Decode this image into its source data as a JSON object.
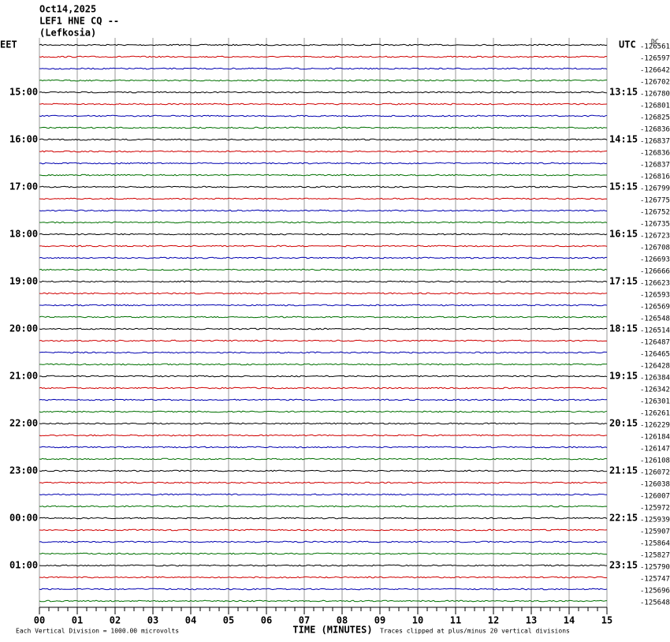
{
  "header": {
    "date": "Oct14,2025",
    "station": "LEF1 HNE CQ --",
    "location": "(Lefkosia)",
    "dc_label": "DC"
  },
  "left_labels": [
    "EET",
    "15:00",
    "16:00",
    "17:00",
    "18:00",
    "19:00",
    "20:00",
    "21:00",
    "22:00",
    "23:00",
    "00:00",
    "01:00"
  ],
  "right_labels": [
    "UTC",
    "13:15",
    "14:15",
    "15:15",
    "16:15",
    "17:15",
    "18:15",
    "19:15",
    "20:15",
    "21:15",
    "22:15",
    "23:15"
  ],
  "trace_offsets": [
    -126561,
    -126597,
    -126642,
    -126702,
    -126780,
    -126801,
    -126825,
    -126836,
    -126837,
    -126836,
    -126837,
    -126816,
    -126799,
    -126775,
    -126752,
    -126735,
    -126723,
    -126708,
    -126693,
    -126666,
    -126623,
    -126593,
    -126569,
    -126548,
    -126514,
    -126487,
    -126465,
    -126428,
    -126384,
    -126342,
    -126301,
    -126261,
    -126229,
    -126184,
    -126147,
    -126108,
    -126072,
    -126038,
    -126007,
    -125972,
    -125939,
    -125907,
    -125864,
    -125827,
    -125790,
    -125747,
    -125696,
    -125648
  ],
  "trace_colors": [
    "#000000",
    "#d00000",
    "#0000b0",
    "#007000"
  ],
  "x_ticks": [
    "00",
    "01",
    "02",
    "03",
    "04",
    "05",
    "06",
    "07",
    "08",
    "09",
    "10",
    "11",
    "12",
    "13",
    "14",
    "15"
  ],
  "footer": {
    "axis_title": "TIME (MINUTES)",
    "scale_note": "Each Vertical Division = 1000.00 microvolts",
    "clip_note": "Traces clipped at plus/minus 20 vertical divisions"
  }
}
